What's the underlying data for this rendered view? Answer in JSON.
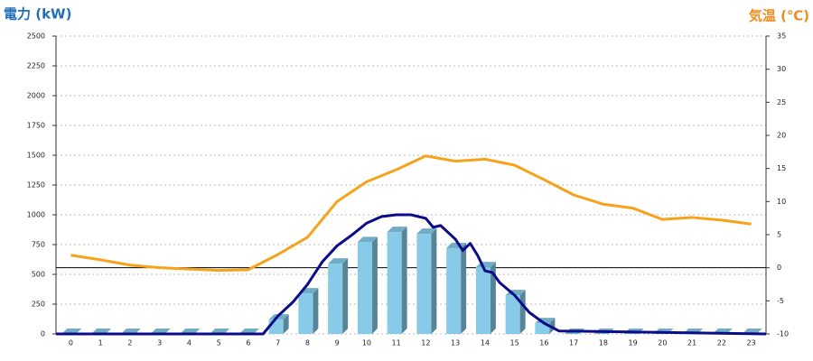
{
  "chart_data": {
    "type": "combo",
    "y_label": "電力 (kW)",
    "y2_label": "気温 (℃)",
    "categories": [
      "0",
      "1",
      "2",
      "3",
      "4",
      "5",
      "6",
      "7",
      "8",
      "9",
      "10",
      "11",
      "12",
      "13",
      "14",
      "15",
      "16",
      "17",
      "18",
      "19",
      "20",
      "21",
      "22",
      "23"
    ],
    "ylim": [
      0,
      2500
    ],
    "yticks": [
      0,
      250,
      500,
      750,
      1000,
      1250,
      1500,
      1750,
      2000,
      2250,
      2500
    ],
    "y2lim": [
      -10,
      35
    ],
    "y2ticks": [
      -10,
      -5,
      0,
      5,
      10,
      15,
      20,
      25,
      30,
      35
    ],
    "grid": true,
    "zero_line_y2": true,
    "series": [
      {
        "type": "bar",
        "color": "#87cbe8",
        "values": [
          0,
          0,
          0,
          0,
          0,
          0,
          0,
          120,
          340,
          590,
          770,
          855,
          840,
          720,
          560,
          325,
          90,
          0,
          0,
          0,
          0,
          0,
          0,
          0
        ]
      },
      {
        "type": "line",
        "axis": "y2",
        "color": "#f7a21b",
        "values": [
          1.9,
          1.2,
          0.4,
          0,
          -0.2,
          -0.4,
          -0.3,
          2.0,
          4.6,
          10.0,
          13.0,
          14.8,
          16.9,
          16.1,
          16.4,
          15.5,
          13.3,
          11.0,
          9.6,
          9.0,
          7.3,
          7.6,
          7.2,
          6.6
        ]
      },
      {
        "type": "line",
        "color": "#0c0c8a",
        "x": [
          -0.5,
          6.5,
          7,
          7.5,
          8,
          8.5,
          9,
          9.5,
          10,
          10.5,
          11,
          11.5,
          12,
          12.25,
          12.5,
          13,
          13.25,
          13.5,
          13.75,
          14,
          14.25,
          14.5,
          15,
          15.5,
          16,
          16.5,
          23.5
        ],
        "values": [
          0,
          0,
          150,
          265,
          415,
          605,
          740,
          830,
          930,
          985,
          1000,
          1000,
          970,
          895,
          910,
          795,
          700,
          760,
          660,
          530,
          515,
          430,
          325,
          180,
          90,
          25,
          0
        ]
      }
    ]
  }
}
